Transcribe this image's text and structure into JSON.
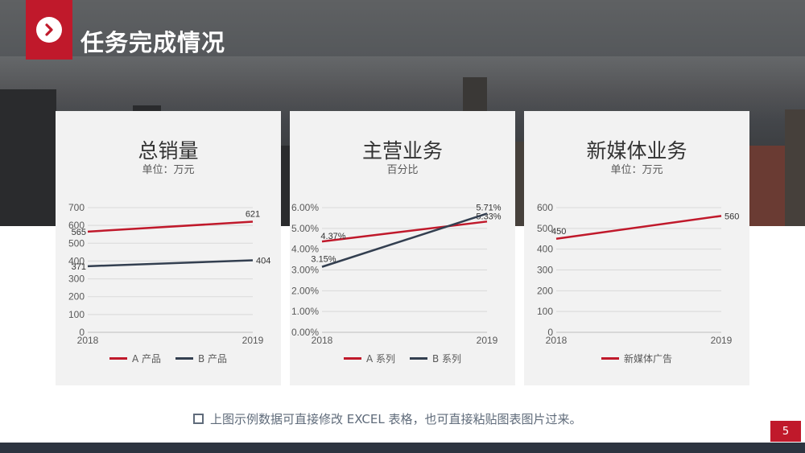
{
  "page": {
    "title": "任务完成情况",
    "footnote": "上图示例数据可直接修改 EXCEL 表格，也可直接粘贴图表图片过来。",
    "page_number": "5"
  },
  "colors": {
    "accent": "#c0192b",
    "series_a": "#c0192b",
    "series_b": "#333f50",
    "dark": "#2d3440"
  },
  "icons": {
    "title_badge": "chevron-right-circle-icon",
    "footnote_bullet": "hollow-square-icon"
  },
  "chart_data": [
    {
      "type": "line",
      "title": "总销量",
      "subtitle": "单位：万元",
      "x": [
        "2018",
        "2019"
      ],
      "ylim": [
        0,
        700
      ],
      "yticks": [
        "0",
        "100",
        "200",
        "300",
        "400",
        "500",
        "600",
        "700"
      ],
      "ytick_values": [
        0,
        100,
        200,
        300,
        400,
        500,
        600,
        700
      ],
      "grid": true,
      "legend": "bottom",
      "series": [
        {
          "name": "A 产品",
          "values": [
            565,
            621
          ],
          "labels": [
            "565",
            "621"
          ]
        },
        {
          "name": "B 产品",
          "values": [
            371,
            404
          ],
          "labels": [
            "371",
            "404"
          ]
        }
      ]
    },
    {
      "type": "line",
      "title": "主营业务",
      "subtitle": "百分比",
      "x": [
        "2018",
        "2019"
      ],
      "ylim": [
        0,
        0.06
      ],
      "yticks": [
        "0.00%",
        "1.00%",
        "2.00%",
        "3.00%",
        "4.00%",
        "5.00%",
        "6.00%"
      ],
      "ytick_values": [
        0,
        0.01,
        0.02,
        0.03,
        0.04,
        0.05,
        0.06
      ],
      "grid": true,
      "legend": "bottom",
      "series": [
        {
          "name": "A 系列",
          "values": [
            0.0437,
            0.0533
          ],
          "labels": [
            "4.37%",
            "5.33%"
          ]
        },
        {
          "name": "B 系列",
          "values": [
            0.0315,
            0.0571
          ],
          "labels": [
            "3.15%",
            "5.71%"
          ]
        }
      ]
    },
    {
      "type": "line",
      "title": "新媒体业务",
      "subtitle": "单位：万元",
      "x": [
        "2018",
        "2019"
      ],
      "ylim": [
        0,
        600
      ],
      "yticks": [
        "0",
        "100",
        "200",
        "300",
        "400",
        "500",
        "600"
      ],
      "ytick_values": [
        0,
        100,
        200,
        300,
        400,
        500,
        600
      ],
      "grid": true,
      "legend": "bottom",
      "series": [
        {
          "name": "新媒体广告",
          "values": [
            450,
            560
          ],
          "labels": [
            "450",
            "560"
          ]
        }
      ]
    }
  ]
}
